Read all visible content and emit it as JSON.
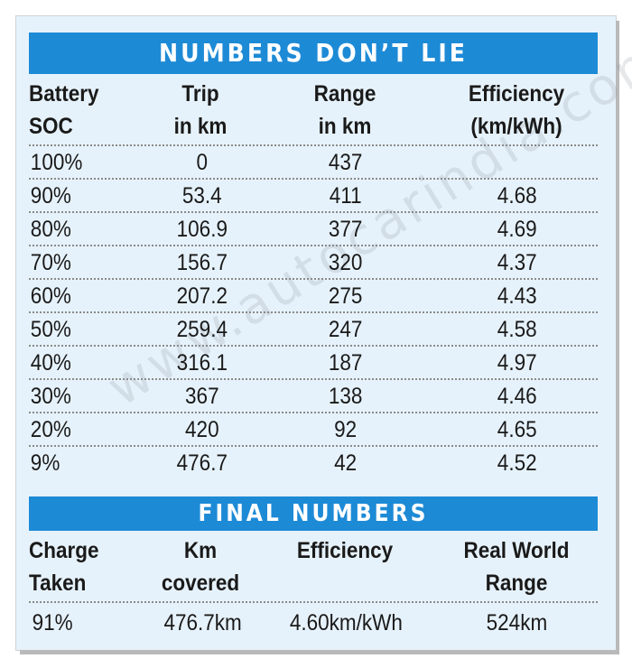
{
  "table": {
    "title": "NUMBERS DON’T LIE",
    "headers": [
      [
        "Battery",
        "SOC"
      ],
      [
        "Trip",
        "in km"
      ],
      [
        "Range",
        "in km"
      ],
      [
        "Efficiency",
        "(km/kWh)"
      ]
    ],
    "rows": [
      [
        "100%",
        "0",
        "437",
        ""
      ],
      [
        "90%",
        "53.4",
        "411",
        "4.68"
      ],
      [
        "80%",
        "106.9",
        "377",
        "4.69"
      ],
      [
        "70%",
        "156.7",
        "320",
        "4.37"
      ],
      [
        "60%",
        "207.2",
        "275",
        "4.43"
      ],
      [
        "50%",
        "259.4",
        "247",
        "4.58"
      ],
      [
        "40%",
        "316.1",
        "187",
        "4.97"
      ],
      [
        "30%",
        "367",
        "138",
        "4.46"
      ],
      [
        "20%",
        "420",
        "92",
        "4.65"
      ],
      [
        "9%",
        "476.7",
        "42",
        "4.52"
      ]
    ]
  },
  "final": {
    "title": "FINAL NUMBERS",
    "headers": [
      [
        "Charge",
        "Taken"
      ],
      [
        "Km",
        "covered"
      ],
      [
        "Efficiency",
        ""
      ],
      [
        "Real World",
        "Range"
      ]
    ],
    "values": [
      "91%",
      "476.7km",
      "4.60km/kWh",
      "524km"
    ]
  },
  "watermark": "www.autocarindia.com"
}
